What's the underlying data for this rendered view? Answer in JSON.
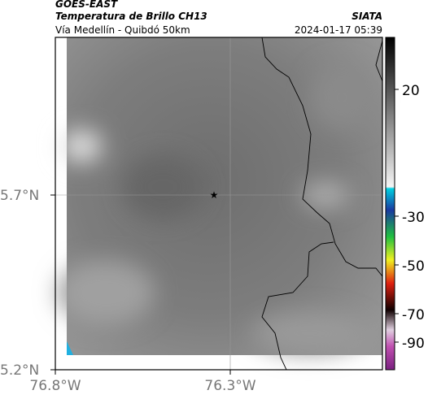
{
  "header": {
    "source": "GOES-EAST",
    "product": "Temperatura de Brillo CH13",
    "region": "Vía Medellín - Quibdó 50km",
    "agency": "SIATA",
    "datetime": "2024-01-17 05:39"
  },
  "map": {
    "lat_labels": [
      "5.7°N",
      "5.2°N"
    ],
    "lon_labels": [
      "76.8°W",
      "76.3°W"
    ]
  },
  "colorbar": {
    "labels": [
      "20",
      "-30",
      "-50",
      "-70",
      "-90"
    ]
  }
}
